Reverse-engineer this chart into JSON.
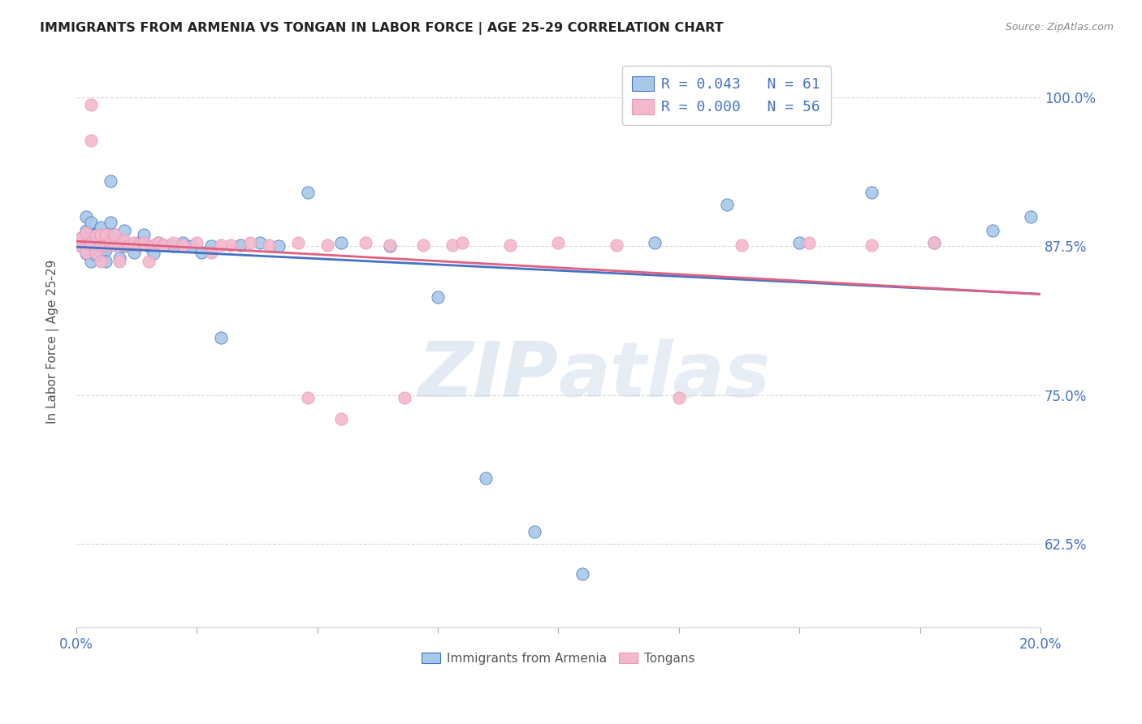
{
  "title": "IMMIGRANTS FROM ARMENIA VS TONGAN IN LABOR FORCE | AGE 25-29 CORRELATION CHART",
  "source_text": "Source: ZipAtlas.com",
  "ylabel": "In Labor Force | Age 25-29",
  "watermark": "ZIPatlas",
  "legend_line1": "R = 0.043   N = 61",
  "legend_line2": "R = 0.000   N = 56",
  "legend_labels_bottom": [
    "Immigrants from Armenia",
    "Tongans"
  ],
  "xlim": [
    0.0,
    0.2
  ],
  "ylim": [
    0.555,
    1.035
  ],
  "yticks": [
    0.625,
    0.75,
    0.875,
    1.0
  ],
  "ytick_labels": [
    "62.5%",
    "75.0%",
    "87.5%",
    "100.0%"
  ],
  "xtick_positions": [
    0.0,
    0.025,
    0.05,
    0.075,
    0.1,
    0.125,
    0.15,
    0.175,
    0.2
  ],
  "color_armenia": "#a8c8e8",
  "color_tonga": "#f4b8cc",
  "line_color_armenia": "#4472c4",
  "line_color_tonga": "#e06080",
  "title_color": "#222222",
  "axis_color": "#4472c4",
  "background_color": "#ffffff",
  "grid_color": "#d8d8d8",
  "dot_size": 120,
  "armenia_x": [
    0.001,
    0.001,
    0.002,
    0.002,
    0.002,
    0.003,
    0.003,
    0.003,
    0.003,
    0.004,
    0.004,
    0.004,
    0.004,
    0.005,
    0.005,
    0.005,
    0.005,
    0.006,
    0.006,
    0.006,
    0.006,
    0.007,
    0.007,
    0.007,
    0.008,
    0.008,
    0.009,
    0.009,
    0.01,
    0.01,
    0.011,
    0.012,
    0.013,
    0.014,
    0.015,
    0.016,
    0.017,
    0.018,
    0.02,
    0.022,
    0.024,
    0.026,
    0.028,
    0.03,
    0.034,
    0.038,
    0.042,
    0.048,
    0.055,
    0.065,
    0.075,
    0.085,
    0.095,
    0.105,
    0.12,
    0.135,
    0.15,
    0.165,
    0.178,
    0.19,
    0.198
  ],
  "armenia_y": [
    0.875,
    0.882,
    0.869,
    0.888,
    0.9,
    0.876,
    0.862,
    0.886,
    0.895,
    0.872,
    0.885,
    0.878,
    0.868,
    0.877,
    0.884,
    0.87,
    0.891,
    0.876,
    0.884,
    0.872,
    0.862,
    0.878,
    0.895,
    0.93,
    0.876,
    0.885,
    0.878,
    0.865,
    0.875,
    0.888,
    0.876,
    0.87,
    0.878,
    0.885,
    0.875,
    0.869,
    0.878,
    0.876,
    0.875,
    0.878,
    0.875,
    0.87,
    0.875,
    0.798,
    0.876,
    0.878,
    0.875,
    0.92,
    0.878,
    0.875,
    0.832,
    0.68,
    0.635,
    0.6,
    0.878,
    0.91,
    0.878,
    0.92,
    0.878,
    0.888,
    0.9
  ],
  "tonga_x": [
    0.001,
    0.001,
    0.002,
    0.002,
    0.003,
    0.003,
    0.003,
    0.004,
    0.004,
    0.005,
    0.005,
    0.005,
    0.006,
    0.006,
    0.007,
    0.007,
    0.008,
    0.008,
    0.009,
    0.009,
    0.01,
    0.01,
    0.011,
    0.012,
    0.013,
    0.014,
    0.015,
    0.016,
    0.017,
    0.018,
    0.02,
    0.022,
    0.025,
    0.028,
    0.032,
    0.036,
    0.04,
    0.046,
    0.052,
    0.06,
    0.068,
    0.078,
    0.09,
    0.1,
    0.112,
    0.125,
    0.138,
    0.152,
    0.165,
    0.178,
    0.03,
    0.048,
    0.055,
    0.065,
    0.072,
    0.08
  ],
  "tonga_y": [
    0.875,
    0.882,
    0.87,
    0.886,
    0.994,
    0.964,
    0.878,
    0.87,
    0.884,
    0.876,
    0.862,
    0.885,
    0.876,
    0.885,
    0.876,
    0.878,
    0.876,
    0.885,
    0.876,
    0.862,
    0.876,
    0.88,
    0.876,
    0.878,
    0.876,
    0.878,
    0.862,
    0.876,
    0.878,
    0.876,
    0.878,
    0.876,
    0.878,
    0.87,
    0.876,
    0.878,
    0.876,
    0.878,
    0.876,
    0.878,
    0.748,
    0.876,
    0.876,
    0.878,
    0.876,
    0.748,
    0.876,
    0.878,
    0.876,
    0.878,
    0.876,
    0.748,
    0.73,
    0.876,
    0.876,
    0.878
  ]
}
